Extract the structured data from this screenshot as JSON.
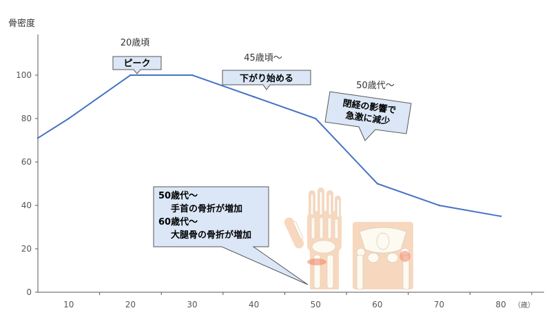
{
  "chart_data": {
    "type": "line",
    "ylabel": "骨密度",
    "xlabel": "",
    "x_unit": "（歳）",
    "x": [
      5,
      10,
      20,
      30,
      40,
      50,
      60,
      70,
      80
    ],
    "x_ticks": [
      10,
      20,
      30,
      40,
      50,
      60,
      70,
      80
    ],
    "y_ticks": [
      0,
      20,
      40,
      60,
      80,
      100
    ],
    "xlim": [
      5,
      85
    ],
    "ylim": [
      0,
      120
    ],
    "grid": false,
    "series": [
      {
        "values": [
          71,
          80,
          100,
          100,
          90,
          80,
          50,
          40,
          35
        ]
      }
    ],
    "series_color": "#4472c4",
    "annotations": {
      "peak_age": "20歳頃",
      "peak_label": "ピーク",
      "decline_age": "45歳頃～",
      "decline_label": "下がり始める",
      "menopause_age": "50歳代～",
      "menopause_line1": "閉経の影響で",
      "menopause_line2": "急激に減少",
      "fracture_line1": "50歳代～",
      "fracture_line2": "手首の骨折が増加",
      "fracture_line3": "60歳代～",
      "fracture_line4": "大腿骨の骨折が増加"
    }
  },
  "illustrations": {
    "hand": "wrist-bones-illustration",
    "pelvis": "pelvis-hip-bones-illustration"
  },
  "colors": {
    "callout_fill": "#dbe7f6",
    "callout_stroke": "#555555",
    "axis": "#555555"
  }
}
